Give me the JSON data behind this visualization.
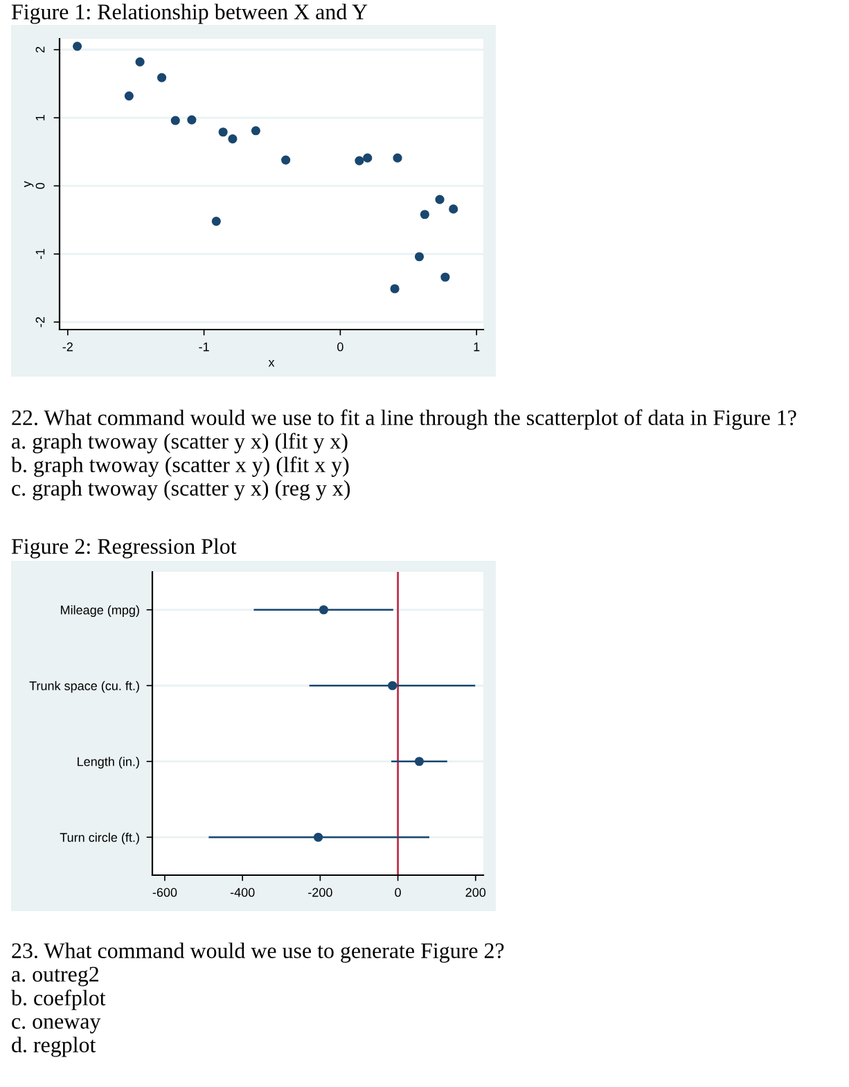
{
  "chart_data": [
    {
      "type": "scatter",
      "title": "Figure 1: Relationship between X and Y",
      "xlabel": "x",
      "ylabel": "y",
      "x": [
        -1.93,
        -1.47,
        -1.55,
        -1.31,
        -1.21,
        -1.09,
        -0.91,
        -0.86,
        -0.79,
        -0.62,
        -0.4,
        0.14,
        0.2,
        0.42,
        0.4,
        0.58,
        0.62,
        0.73,
        0.77,
        0.83
      ],
      "series": [
        {
          "color": "#1a476f",
          "values": [
            2.05,
            1.82,
            1.32,
            1.59,
            0.96,
            0.97,
            -0.52,
            0.79,
            0.69,
            0.81,
            0.38,
            0.37,
            0.41,
            0.41,
            -1.51,
            -1.04,
            -0.42,
            -0.2,
            -1.34,
            -0.34
          ]
        }
      ],
      "xlim": [
        -2.06,
        1.05
      ],
      "xticks": [
        -2,
        -1,
        0,
        1
      ],
      "ylim": [
        -2.11,
        2.16
      ],
      "yticks": [
        -2,
        -1,
        0,
        1,
        2
      ],
      "grid": "y",
      "marker": "circle",
      "annotations": [
        "22. What command would we use to fit a line through the scatterplot of data in Figure 1?",
        "a. graph twoway (scatter y x) (lfit y x)",
        "b. graph twoway (scatter x y) (lfit x y)",
        "c. graph twoway (scatter y x) (reg y x)"
      ]
    },
    {
      "type": "scatter",
      "title": "Figure 2: Regression Plot",
      "orientation": "horizontal",
      "categories": [
        "Mileage (mpg)",
        "Trunk space (cu. ft.)",
        "Length (in.)",
        "Turn circle (ft.)"
      ],
      "series": [
        {
          "color": "#1a476f",
          "values": [
            -191,
            -14,
            55,
            -205
          ],
          "errors": [
            [
              -371,
              -12
            ],
            [
              -228,
              199
            ],
            [
              -17,
              127
            ],
            [
              -487,
              81
            ]
          ]
        }
      ],
      "xlim": [
        -632,
        220
      ],
      "xticks": [
        -600,
        -400,
        -200,
        0,
        200
      ],
      "ref_lines": [
        {
          "axis": "x",
          "value": 0,
          "color": "#c0304a"
        }
      ],
      "grid": "y",
      "marker": "circle",
      "annotations": [
        "23. What command would we use to generate Figure 2?",
        "a. outreg2",
        "b. coefplot",
        "c. oneway",
        "d. regplot"
      ]
    }
  ]
}
